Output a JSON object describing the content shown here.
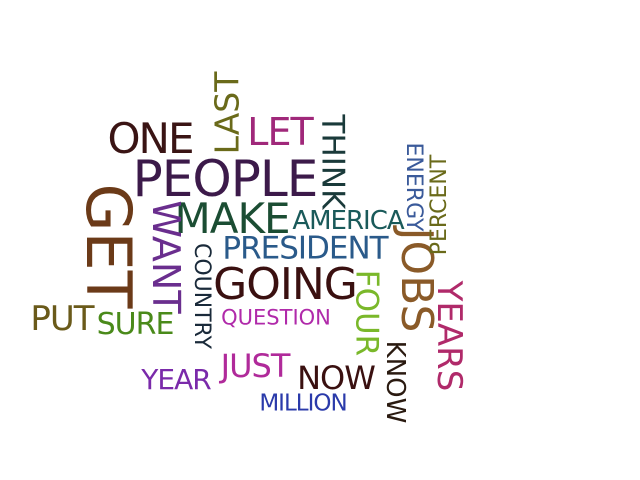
{
  "words": [
    {
      "id": "get",
      "text": "GET",
      "color": "#6b3a18"
    },
    {
      "id": "people",
      "text": "PEOPLE",
      "color": "#3c1a4a"
    },
    {
      "id": "make",
      "text": "MAKE",
      "color": "#1b4d33"
    },
    {
      "id": "going",
      "text": "GOING",
      "color": "#3a1010"
    },
    {
      "id": "one",
      "text": "ONE",
      "color": "#3a1414"
    },
    {
      "id": "jobs",
      "text": "JOBS",
      "color": "#8a5a28"
    },
    {
      "id": "president",
      "text": "PRESIDENT",
      "color": "#2a5a8a"
    },
    {
      "id": "want",
      "text": "WANT",
      "color": "#6a2e8e"
    },
    {
      "id": "years",
      "text": "YEARS",
      "color": "#b02a6a"
    },
    {
      "id": "let",
      "text": "LET",
      "color": "#a0287a"
    },
    {
      "id": "think",
      "text": "THINK",
      "color": "#1a3a3a"
    },
    {
      "id": "last",
      "text": "LAST",
      "color": "#6a6a1a"
    },
    {
      "id": "four",
      "text": "FOUR",
      "color": "#7ab82a"
    },
    {
      "id": "america",
      "text": "AMERICA",
      "color": "#1a5a5a"
    },
    {
      "id": "put",
      "text": "PUT",
      "color": "#6a5a1a"
    },
    {
      "id": "just",
      "text": "JUST",
      "color": "#b02a9a"
    },
    {
      "id": "now",
      "text": "NOW",
      "color": "#3a1010"
    },
    {
      "id": "sure",
      "text": "SURE",
      "color": "#4a8a1a"
    },
    {
      "id": "year",
      "text": "YEAR",
      "color": "#7a2aaa"
    },
    {
      "id": "country",
      "text": "COUNTRY",
      "color": "#1a2a3a"
    },
    {
      "id": "energy",
      "text": "ENERGY",
      "color": "#3a5a9a"
    },
    {
      "id": "percent",
      "text": "PERCENT",
      "color": "#6a6a1a"
    },
    {
      "id": "know",
      "text": "KNOW",
      "color": "#2a1a10"
    },
    {
      "id": "question",
      "text": "QUESTION",
      "color": "#b02aaa"
    },
    {
      "id": "million",
      "text": "MILLION",
      "color": "#2a3aaa"
    }
  ]
}
